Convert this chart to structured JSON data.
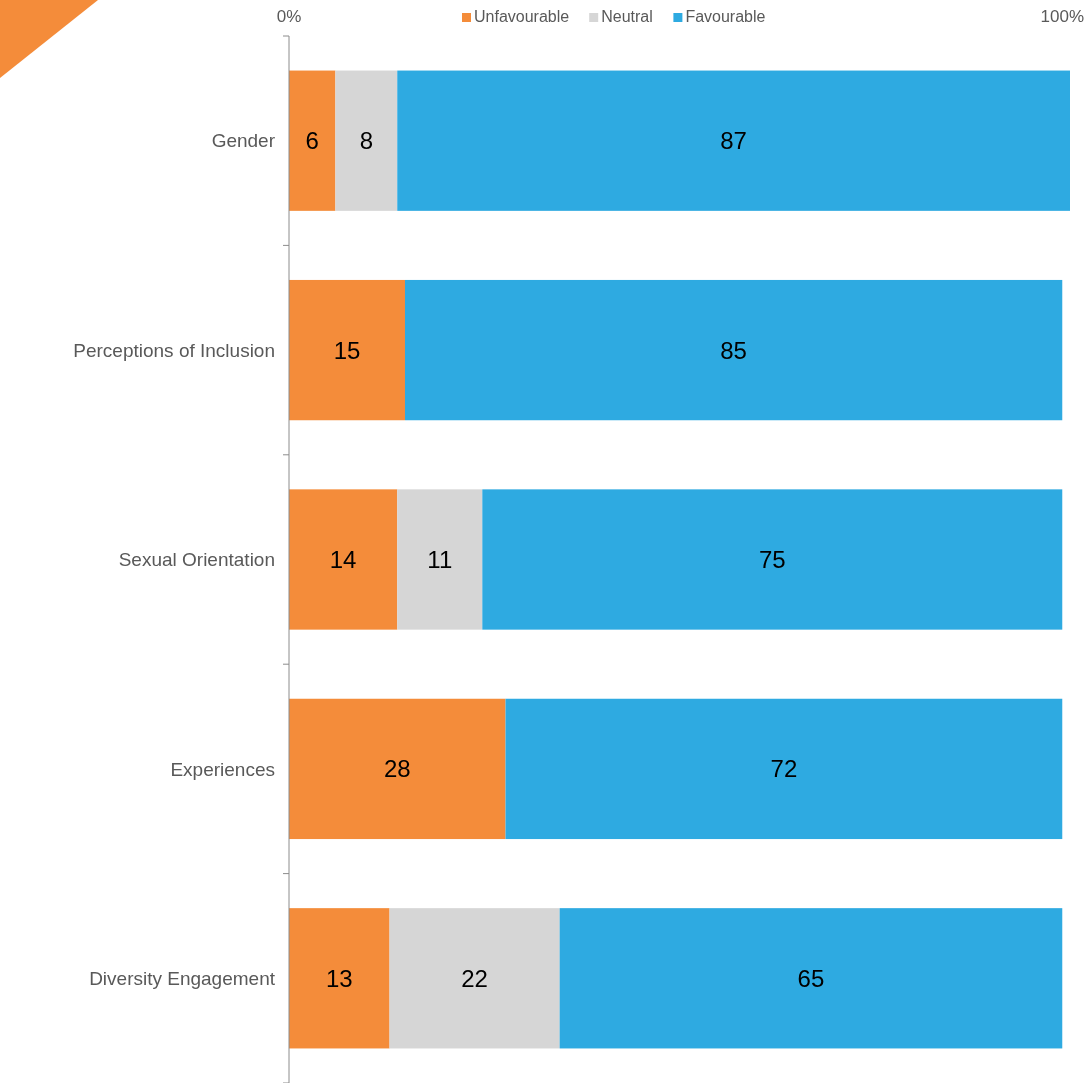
{
  "chart_data": {
    "type": "bar",
    "orientation": "horizontal",
    "stacked": true,
    "categories": [
      "Gender",
      "Perceptions of Inclusion",
      "Sexual Orientation",
      "Experiences",
      "Diversity Engagement"
    ],
    "series": [
      {
        "name": "Unfavourable",
        "color": "#f48c3a",
        "values": [
          6,
          15,
          14,
          28,
          13
        ]
      },
      {
        "name": "Neutral",
        "color": "#d6d6d6",
        "values": [
          8,
          null,
          11,
          null,
          22
        ]
      },
      {
        "name": "Favourable",
        "color": "#2eaae1",
        "values": [
          87,
          85,
          75,
          72,
          65
        ]
      }
    ],
    "xlim": [
      0,
      101
    ],
    "xticks": [
      {
        "value": 0,
        "label": "0%"
      },
      {
        "value": 100,
        "label": "100%"
      }
    ],
    "data_labels": true,
    "legend": "top",
    "grid": false
  }
}
